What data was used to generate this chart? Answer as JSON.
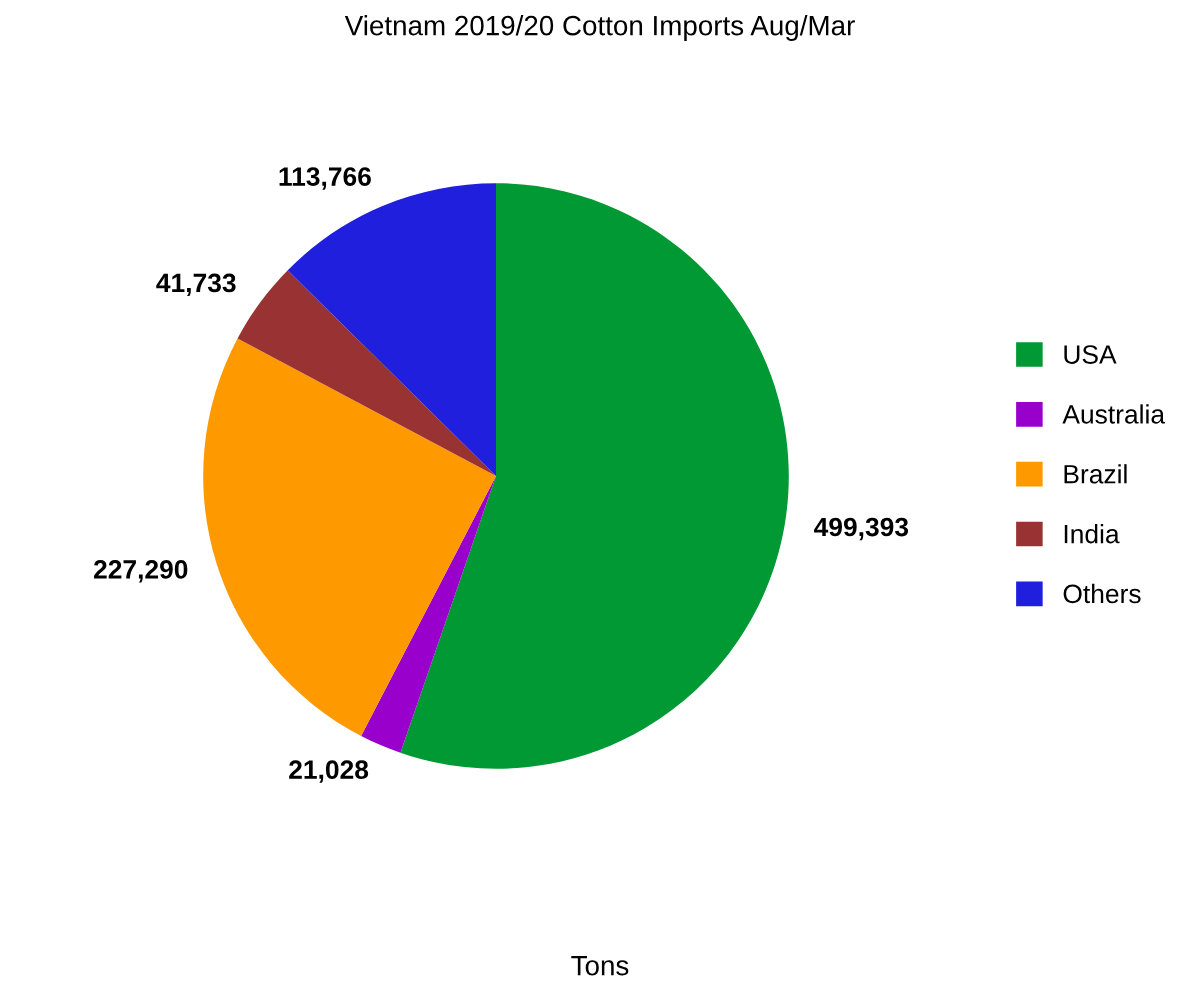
{
  "chart_data": {
    "type": "pie",
    "title": "Vietnam 2019/20 Cotton Imports Aug/Mar",
    "categories": [
      "USA",
      "Australia",
      "Brazil",
      "India",
      "Others"
    ],
    "values": [
      499393,
      21028,
      227290,
      41733,
      113766
    ],
    "colors": [
      "#009933",
      "#9900cc",
      "#ff9900",
      "#993333",
      "#1f1fdd"
    ],
    "value_labels": [
      "499,393",
      "21,028",
      "227,290",
      "41,733",
      "113,766"
    ],
    "legend": "right",
    "annotations": [
      "Tons"
    ]
  }
}
